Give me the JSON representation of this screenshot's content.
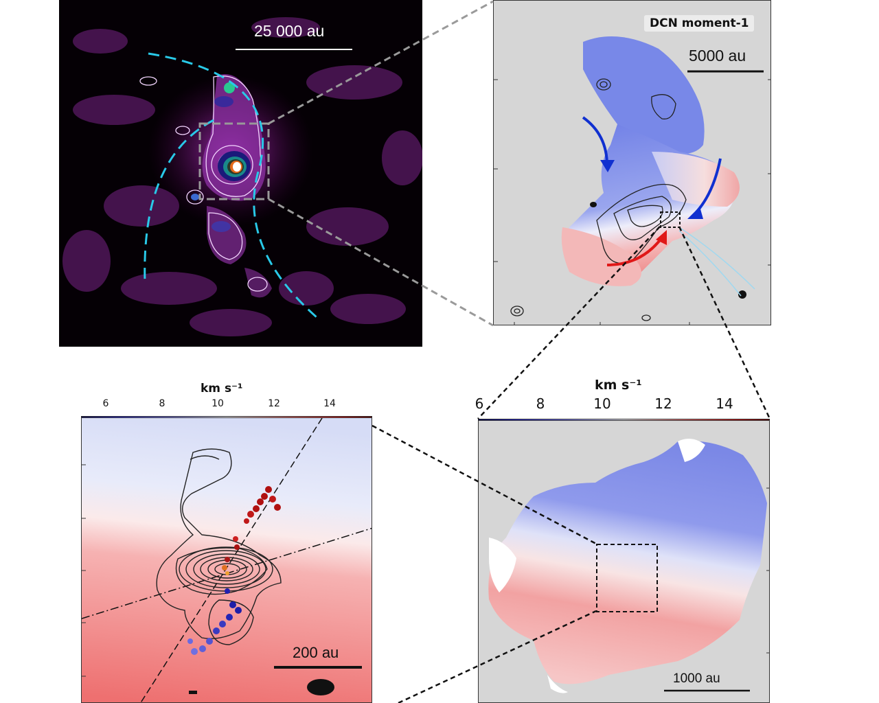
{
  "panel_a": {
    "scalebar_label": "25 000 au"
  },
  "panel_b": {
    "title": "DCN moment-1",
    "scalebar_label": "5000 au"
  },
  "panel_c": {
    "colorbar_unit": "km s⁻¹",
    "colorbar_ticks": [
      "6",
      "8",
      "10",
      "12",
      "14"
    ],
    "scalebar_label": "200 au"
  },
  "panel_d": {
    "colorbar_unit": "km s⁻¹",
    "colorbar_ticks": [
      "6",
      "8",
      "10",
      "12",
      "14"
    ],
    "scalebar_label": "1000 au"
  },
  "colors": {
    "dashed_arc": "#29c9e8",
    "blue_flow": "#1030d0",
    "red_flow": "#e01818",
    "zoom_line": "#111111"
  }
}
